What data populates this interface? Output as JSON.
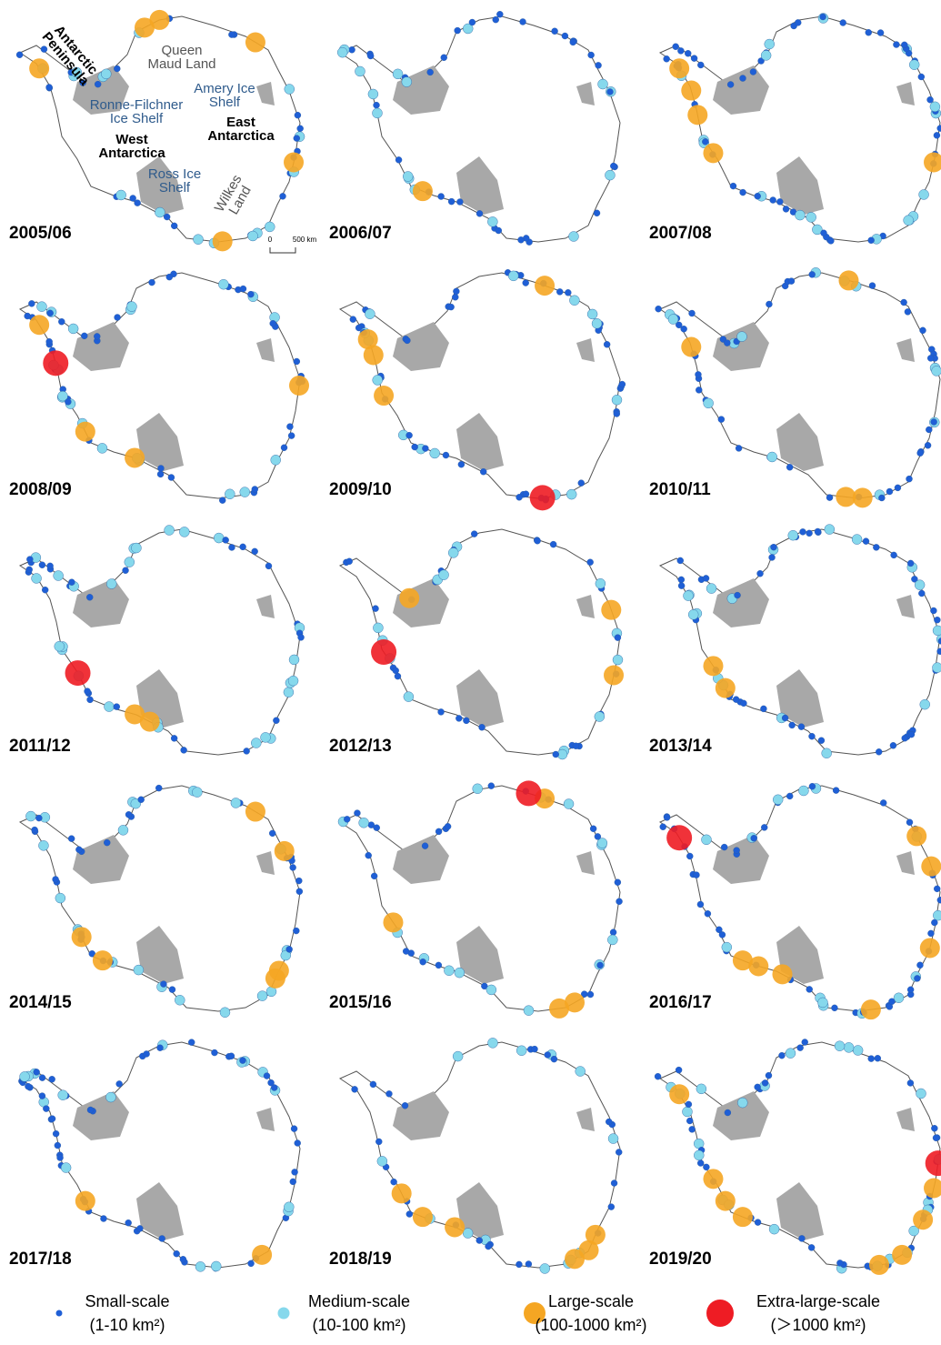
{
  "panels": [
    "2005/06",
    "2006/07",
    "2007/08",
    "2008/09",
    "2009/10",
    "2010/11",
    "2011/12",
    "2012/13",
    "2013/14",
    "2014/15",
    "2015/16",
    "2016/17",
    "2017/18",
    "2018/19",
    "2019/20"
  ],
  "map_labels": {
    "antarctic_peninsula": [
      "Antarctic",
      "Peninsula"
    ],
    "queen_maud_land": [
      "Queen",
      "Maud Land"
    ],
    "amery_ice_shelf": [
      "Amery Ice",
      "Shelf"
    ],
    "ronne_filchner_ice_shelf": [
      "Ronne-Filchner",
      "Ice Shelf"
    ],
    "west_antarctica": [
      "West",
      "Antarctica"
    ],
    "east_antarctica": [
      "East",
      "Antarctica"
    ],
    "ross_ice_shelf": [
      "Ross Ice",
      "Shelf"
    ],
    "wilkes_land": [
      "Wilkes",
      "Land"
    ]
  },
  "scale_bar": [
    "0",
    "500 km"
  ],
  "legend": [
    {
      "name": "Small-scale",
      "range": "(1-10 km²)",
      "color": "#1f5fd6"
    },
    {
      "name": "Medium-scale",
      "range": "(10-100 km²)",
      "color": "#86d8ec"
    },
    {
      "name": "Large-scale",
      "range": "(100-1000 km²)",
      "color": "#f5a623"
    },
    {
      "name": "Extra-large-scale",
      "range": "(＞1000 km²)",
      "color": "#ee1c24"
    }
  ]
}
